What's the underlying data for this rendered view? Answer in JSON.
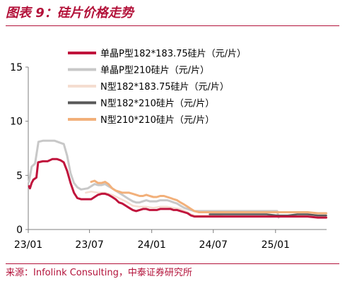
{
  "figure": {
    "title": "图表 9：硅片价格走势",
    "source": "来源：Infolink Consulting，中泰证券研究所"
  },
  "chart_data": {
    "type": "line",
    "title": "",
    "xlabel": "",
    "ylabel": "",
    "ylim": [
      0,
      15
    ],
    "yticks": [
      0,
      5,
      10,
      15
    ],
    "xticks": [
      "23/01",
      "23/07",
      "24/01",
      "24/07",
      "25/01"
    ],
    "x_range": [
      "2023-01",
      "2025-06"
    ],
    "grid": false,
    "legend_position": "top-right",
    "series": [
      {
        "name": "单晶P型182*183.75硅片（元/片）",
        "color": "#c0143c",
        "width": 3,
        "points": [
          [
            "2023-01-03",
            4.0
          ],
          [
            "2023-01-06",
            3.8
          ],
          [
            "2023-01-11",
            4.3
          ],
          [
            "2023-01-16",
            4.6
          ],
          [
            "2023-01-25",
            4.8
          ],
          [
            "2023-01-30",
            6.2
          ],
          [
            "2023-02-13",
            6.3
          ],
          [
            "2023-02-27",
            6.3
          ],
          [
            "2023-03-13",
            6.5
          ],
          [
            "2023-03-27",
            6.5
          ],
          [
            "2023-04-06",
            6.4
          ],
          [
            "2023-04-16",
            6.2
          ],
          [
            "2023-04-26",
            5.4
          ],
          [
            "2023-05-06",
            4.3
          ],
          [
            "2023-05-16",
            3.4
          ],
          [
            "2023-05-26",
            2.9
          ],
          [
            "2023-06-06",
            2.8
          ],
          [
            "2023-06-26",
            2.8
          ],
          [
            "2023-07-06",
            2.8
          ],
          [
            "2023-07-16",
            3.0
          ],
          [
            "2023-07-26",
            3.2
          ],
          [
            "2023-08-06",
            3.3
          ],
          [
            "2023-08-16",
            3.3
          ],
          [
            "2023-08-26",
            3.2
          ],
          [
            "2023-09-06",
            3.0
          ],
          [
            "2023-09-16",
            2.8
          ],
          [
            "2023-09-26",
            2.5
          ],
          [
            "2023-10-06",
            2.4
          ],
          [
            "2023-10-16",
            2.2
          ],
          [
            "2023-10-26",
            2.0
          ],
          [
            "2023-11-06",
            1.8
          ],
          [
            "2023-11-16",
            1.7
          ],
          [
            "2023-11-26",
            1.8
          ],
          [
            "2023-12-06",
            1.9
          ],
          [
            "2023-12-16",
            1.9
          ],
          [
            "2023-12-26",
            1.8
          ],
          [
            "2024-01-06",
            1.8
          ],
          [
            "2024-01-16",
            1.8
          ],
          [
            "2024-01-26",
            1.9
          ],
          [
            "2024-02-06",
            1.9
          ],
          [
            "2024-02-16",
            1.9
          ],
          [
            "2024-02-26",
            1.9
          ],
          [
            "2024-03-06",
            1.8
          ],
          [
            "2024-03-16",
            1.8
          ],
          [
            "2024-03-26",
            1.7
          ],
          [
            "2024-04-06",
            1.6
          ],
          [
            "2024-04-16",
            1.5
          ],
          [
            "2024-04-26",
            1.3
          ],
          [
            "2024-05-06",
            1.2
          ],
          [
            "2024-05-20",
            1.2
          ],
          [
            "2024-06-06",
            1.2
          ],
          [
            "2024-07-06",
            1.2
          ],
          [
            "2024-08-06",
            1.2
          ],
          [
            "2024-09-06",
            1.2
          ],
          [
            "2024-10-06",
            1.2
          ],
          [
            "2024-11-06",
            1.2
          ],
          [
            "2024-12-06",
            1.2
          ],
          [
            "2025-01-06",
            1.2
          ],
          [
            "2025-02-06",
            1.2
          ],
          [
            "2025-03-06",
            1.2
          ],
          [
            "2025-04-06",
            1.2
          ],
          [
            "2025-05-06",
            1.1
          ],
          [
            "2025-05-31",
            1.1
          ]
        ]
      },
      {
        "name": "单晶P型210硅片（元/片）",
        "color": "#c8c8c8",
        "width": 3,
        "points": [
          [
            "2023-01-03",
            4.4
          ],
          [
            "2023-01-11",
            5.8
          ],
          [
            "2023-01-21",
            6.1
          ],
          [
            "2023-01-31",
            8.1
          ],
          [
            "2023-02-13",
            8.2
          ],
          [
            "2023-03-06",
            8.2
          ],
          [
            "2023-03-20",
            8.2
          ],
          [
            "2023-04-06",
            8.0
          ],
          [
            "2023-04-16",
            7.9
          ],
          [
            "2023-04-26",
            6.8
          ],
          [
            "2023-05-06",
            5.2
          ],
          [
            "2023-05-16",
            4.3
          ],
          [
            "2023-05-26",
            3.9
          ],
          [
            "2023-06-06",
            3.7
          ],
          [
            "2023-06-26",
            3.8
          ],
          [
            "2023-07-06",
            4.0
          ],
          [
            "2023-07-16",
            4.2
          ],
          [
            "2023-07-26",
            4.1
          ],
          [
            "2023-08-06",
            4.1
          ],
          [
            "2023-08-16",
            4.2
          ],
          [
            "2023-08-26",
            4.0
          ],
          [
            "2023-09-06",
            3.8
          ],
          [
            "2023-09-16",
            3.6
          ],
          [
            "2023-09-26",
            3.4
          ],
          [
            "2023-10-06",
            3.2
          ],
          [
            "2023-10-16",
            3.0
          ],
          [
            "2023-10-26",
            2.8
          ],
          [
            "2023-11-06",
            2.6
          ],
          [
            "2023-11-16",
            2.5
          ],
          [
            "2023-11-26",
            2.5
          ],
          [
            "2023-12-06",
            2.6
          ],
          [
            "2023-12-16",
            2.7
          ],
          [
            "2023-12-26",
            2.6
          ],
          [
            "2024-01-06",
            2.6
          ],
          [
            "2024-01-16",
            2.6
          ],
          [
            "2024-01-26",
            2.7
          ],
          [
            "2024-02-06",
            2.7
          ],
          [
            "2024-02-16",
            2.7
          ],
          [
            "2024-02-26",
            2.6
          ],
          [
            "2024-03-06",
            2.5
          ],
          [
            "2024-03-16",
            2.4
          ],
          [
            "2024-03-26",
            2.2
          ],
          [
            "2024-04-06",
            2.0
          ],
          [
            "2024-04-16",
            1.9
          ],
          [
            "2024-04-26",
            1.8
          ],
          [
            "2024-05-06",
            1.7
          ],
          [
            "2024-05-20",
            1.7
          ],
          [
            "2024-06-06",
            1.7
          ],
          [
            "2024-07-06",
            1.7
          ],
          [
            "2024-08-06",
            1.7
          ],
          [
            "2024-09-06",
            1.7
          ],
          [
            "2024-10-06",
            1.7
          ],
          [
            "2024-11-06",
            1.7
          ],
          [
            "2024-12-06",
            1.7
          ],
          [
            "2024-12-31",
            1.7
          ],
          [
            "2025-01-06",
            1.7
          ],
          [
            "2025-01-10",
            1.1
          ]
        ]
      },
      {
        "name": "N型182*183.75硅片（元/片）",
        "color": "#f5ddd0",
        "width": 2.5,
        "points": [
          [
            "2023-06-20",
            3.4
          ],
          [
            "2023-07-06",
            3.5
          ],
          [
            "2023-07-26",
            3.4
          ],
          [
            "2023-08-16",
            3.4
          ],
          [
            "2023-09-06",
            3.2
          ],
          [
            "2023-09-26",
            2.9
          ],
          [
            "2023-10-16",
            2.6
          ],
          [
            "2023-11-06",
            2.2
          ],
          [
            "2023-11-26",
            2.1
          ],
          [
            "2023-12-16",
            2.1
          ],
          [
            "2024-01-06",
            2.0
          ],
          [
            "2024-01-26",
            2.1
          ],
          [
            "2024-02-16",
            2.1
          ],
          [
            "2024-03-06",
            2.0
          ],
          [
            "2024-03-26",
            1.9
          ],
          [
            "2024-04-16",
            1.6
          ],
          [
            "2024-04-26",
            1.4
          ],
          [
            "2024-05-06",
            1.3
          ],
          [
            "2024-06-06",
            1.3
          ],
          [
            "2024-07-06",
            1.3
          ],
          [
            "2024-08-06",
            1.2
          ],
          [
            "2024-09-06",
            1.2
          ],
          [
            "2024-10-06",
            1.2
          ],
          [
            "2024-11-06",
            1.2
          ],
          [
            "2024-12-06",
            1.2
          ],
          [
            "2025-01-06",
            1.2
          ],
          [
            "2025-02-06",
            1.2
          ],
          [
            "2025-03-06",
            1.3
          ],
          [
            "2025-04-06",
            1.3
          ],
          [
            "2025-05-06",
            1.2
          ],
          [
            "2025-05-31",
            1.2
          ]
        ]
      },
      {
        "name": "N型182*210硅片（元/片）",
        "color": "#595959",
        "width": 2.5,
        "points": [
          [
            "2024-06-20",
            1.4
          ],
          [
            "2024-07-06",
            1.4
          ],
          [
            "2024-08-06",
            1.4
          ],
          [
            "2024-09-06",
            1.4
          ],
          [
            "2024-10-06",
            1.4
          ],
          [
            "2024-11-06",
            1.4
          ],
          [
            "2024-12-06",
            1.4
          ],
          [
            "2025-01-06",
            1.3
          ],
          [
            "2025-02-06",
            1.3
          ],
          [
            "2025-03-06",
            1.4
          ],
          [
            "2025-04-06",
            1.4
          ],
          [
            "2025-05-06",
            1.3
          ],
          [
            "2025-05-31",
            1.3
          ]
        ]
      },
      {
        "name": "N型210*210硅片（元/片）",
        "color": "#f2b07a",
        "width": 3,
        "points": [
          [
            "2023-07-06",
            4.4
          ],
          [
            "2023-07-16",
            4.5
          ],
          [
            "2023-07-26",
            4.3
          ],
          [
            "2023-08-06",
            4.3
          ],
          [
            "2023-08-16",
            4.4
          ],
          [
            "2023-08-26",
            4.2
          ],
          [
            "2023-09-06",
            3.8
          ],
          [
            "2023-09-16",
            3.6
          ],
          [
            "2023-09-26",
            3.5
          ],
          [
            "2023-10-06",
            3.4
          ],
          [
            "2023-10-16",
            3.4
          ],
          [
            "2023-10-26",
            3.4
          ],
          [
            "2023-11-06",
            3.3
          ],
          [
            "2023-11-16",
            3.2
          ],
          [
            "2023-11-26",
            3.1
          ],
          [
            "2023-12-06",
            3.1
          ],
          [
            "2023-12-16",
            3.2
          ],
          [
            "2023-12-26",
            3.1
          ],
          [
            "2024-01-06",
            3.0
          ],
          [
            "2024-01-16",
            3.0
          ],
          [
            "2024-01-26",
            3.1
          ],
          [
            "2024-02-06",
            3.1
          ],
          [
            "2024-02-16",
            3.0
          ],
          [
            "2024-02-26",
            2.9
          ],
          [
            "2024-03-06",
            2.8
          ],
          [
            "2024-03-16",
            2.7
          ],
          [
            "2024-03-26",
            2.5
          ],
          [
            "2024-04-06",
            2.3
          ],
          [
            "2024-04-16",
            2.1
          ],
          [
            "2024-04-26",
            1.9
          ],
          [
            "2024-05-06",
            1.7
          ],
          [
            "2024-05-20",
            1.6
          ],
          [
            "2024-06-06",
            1.6
          ],
          [
            "2024-07-06",
            1.6
          ],
          [
            "2024-08-06",
            1.6
          ],
          [
            "2024-09-06",
            1.6
          ],
          [
            "2024-10-06",
            1.6
          ],
          [
            "2024-11-06",
            1.6
          ],
          [
            "2024-12-06",
            1.6
          ],
          [
            "2025-01-06",
            1.6
          ],
          [
            "2025-02-06",
            1.6
          ],
          [
            "2025-03-06",
            1.6
          ],
          [
            "2025-04-06",
            1.6
          ],
          [
            "2025-05-06",
            1.5
          ],
          [
            "2025-05-31",
            1.5
          ]
        ]
      }
    ]
  }
}
